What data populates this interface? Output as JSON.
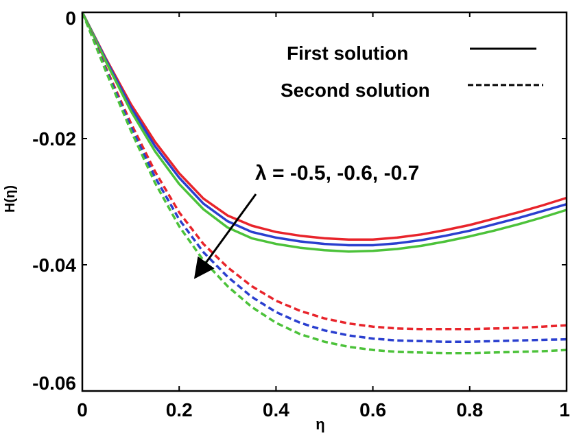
{
  "chart_data": {
    "type": "line",
    "title": "",
    "xlabel": "η",
    "ylabel": "H(η)",
    "xlim": [
      0,
      1
    ],
    "ylim": [
      -0.06,
      0
    ],
    "xticks": [
      0,
      0.2,
      0.4,
      0.6,
      0.8,
      1
    ],
    "xtick_labels": [
      "0",
      "0.2",
      "0.4",
      "0.6",
      "0.8",
      "1"
    ],
    "yticks": [
      0,
      -0.02,
      -0.04,
      -0.06
    ],
    "ytick_labels": [
      "0",
      "-0.02",
      "-0.04",
      "-0.06"
    ],
    "grid": false,
    "legend": {
      "placement": "top-right",
      "entries": [
        {
          "label": "First solution",
          "linestyle": "solid"
        },
        {
          "label": "Second solution",
          "linestyle": "dashed"
        }
      ]
    },
    "annotation": {
      "text": "λ = -0.5, -0.6, -0.7"
    },
    "x": [
      0,
      0.05,
      0.1,
      0.15,
      0.2,
      0.25,
      0.3,
      0.35,
      0.4,
      0.45,
      0.5,
      0.55,
      0.6,
      0.65,
      0.7,
      0.75,
      0.8,
      0.85,
      0.9,
      0.95,
      1.0
    ],
    "series": [
      {
        "lambda": -0.5,
        "solution": "first",
        "color": "#e8242b",
        "linestyle": "solid",
        "values": [
          0,
          -0.0075,
          -0.0145,
          -0.0205,
          -0.0255,
          -0.0295,
          -0.0322,
          -0.0338,
          -0.0348,
          -0.0354,
          -0.0358,
          -0.036,
          -0.036,
          -0.0357,
          -0.0352,
          -0.0345,
          -0.0337,
          -0.0327,
          -0.0317,
          -0.0306,
          -0.0294
        ]
      },
      {
        "lambda": -0.6,
        "solution": "first",
        "color": "#2a3fcf",
        "linestyle": "solid",
        "values": [
          0,
          -0.0077,
          -0.015,
          -0.0212,
          -0.0262,
          -0.0303,
          -0.0331,
          -0.0348,
          -0.0357,
          -0.0363,
          -0.0367,
          -0.0369,
          -0.0369,
          -0.0366,
          -0.0361,
          -0.0354,
          -0.0346,
          -0.0336,
          -0.0326,
          -0.0315,
          -0.0304
        ]
      },
      {
        "lambda": -0.7,
        "solution": "first",
        "color": "#4cc23a",
        "linestyle": "solid",
        "values": [
          0,
          -0.008,
          -0.0156,
          -0.022,
          -0.0272,
          -0.0312,
          -0.0341,
          -0.0358,
          -0.0367,
          -0.0373,
          -0.0377,
          -0.0379,
          -0.0378,
          -0.0375,
          -0.037,
          -0.0363,
          -0.0355,
          -0.0346,
          -0.0336,
          -0.0325,
          -0.0313
        ]
      },
      {
        "lambda": -0.5,
        "solution": "second",
        "color": "#e8242b",
        "linestyle": "dashed",
        "values": [
          0,
          -0.009,
          -0.0175,
          -0.0252,
          -0.0317,
          -0.0367,
          -0.0404,
          -0.0434,
          -0.0457,
          -0.0473,
          -0.0485,
          -0.0493,
          -0.0498,
          -0.0501,
          -0.0502,
          -0.0502,
          -0.0502,
          -0.0501,
          -0.05,
          -0.0498,
          -0.0496
        ]
      },
      {
        "lambda": -0.6,
        "solution": "second",
        "color": "#2a3fcf",
        "linestyle": "dashed",
        "values": [
          0,
          -0.0093,
          -0.0181,
          -0.0261,
          -0.0328,
          -0.038,
          -0.0419,
          -0.0451,
          -0.0475,
          -0.0492,
          -0.0504,
          -0.0512,
          -0.0517,
          -0.052,
          -0.0521,
          -0.0522,
          -0.0522,
          -0.0521,
          -0.052,
          -0.0519,
          -0.0518
        ]
      },
      {
        "lambda": -0.7,
        "solution": "second",
        "color": "#4cc23a",
        "linestyle": "dashed",
        "values": [
          0,
          -0.0096,
          -0.0187,
          -0.027,
          -0.0339,
          -0.0393,
          -0.0434,
          -0.0467,
          -0.0492,
          -0.051,
          -0.0522,
          -0.053,
          -0.0535,
          -0.0538,
          -0.0539,
          -0.054,
          -0.054,
          -0.0539,
          -0.0538,
          -0.0537,
          -0.0535
        ]
      }
    ]
  }
}
